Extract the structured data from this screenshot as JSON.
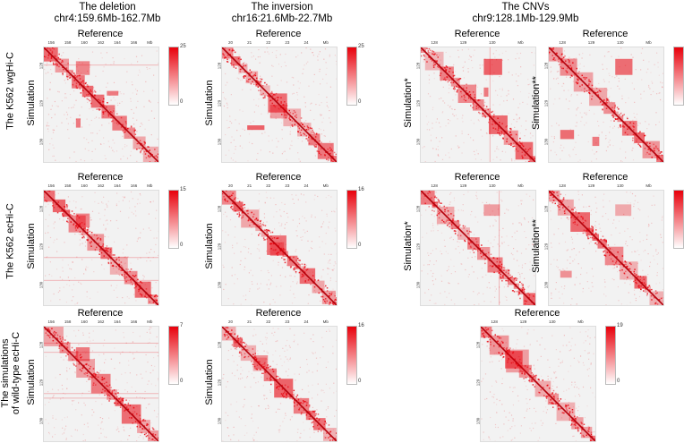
{
  "columns": [
    {
      "title": "The deletion",
      "region": "chr4:159.6Mb-162.7Mb"
    },
    {
      "title": "The inversion",
      "region": "chr16:21.6Mb-22.7Mb"
    },
    {
      "title": "The CNVs",
      "region": "chr9:128.1Mb-129.9Mb"
    }
  ],
  "rows": [
    {
      "label": "The K562 wgHi-C"
    },
    {
      "label": "The K562 ecHi-C"
    },
    {
      "label_line1": "The simulations",
      "label_line2": "of wild-type ecHi-C"
    }
  ],
  "panel_labels": {
    "reference": "Reference",
    "simulation": "Simulation",
    "simulation_star": "Simulation*",
    "simulation_dstar": "Simulation**"
  },
  "ticks": {
    "deletion": [
      "156",
      "158",
      "160",
      "162",
      "164",
      "166",
      "Mb"
    ],
    "inversion": [
      "20",
      "21",
      "22",
      "23",
      "24",
      "Mb"
    ],
    "cnv": [
      "128",
      "129",
      "130",
      "Mb"
    ],
    "cnv_left": [
      "128",
      "129",
      "130"
    ]
  },
  "colorbars": {
    "r1_del": {
      "max": "25",
      "min": "0"
    },
    "r1_inv": {
      "max": "25",
      "min": "0"
    },
    "r1_cnv": {
      "max": "12",
      "min": "0"
    },
    "r2_del": {
      "max": "15",
      "min": "0"
    },
    "r2_inv": {
      "max": "16",
      "min": "0"
    },
    "r2_cnv": {
      "max": "19",
      "min": "0"
    },
    "r3_del": {
      "max": "7",
      "min": "0"
    },
    "r3_inv": {
      "max": "16",
      "min": "0"
    },
    "r3_cnv": {
      "max": "19",
      "min": "0"
    }
  },
  "colors": {
    "heat": "#e8000b",
    "background": "#f2f2f2"
  }
}
